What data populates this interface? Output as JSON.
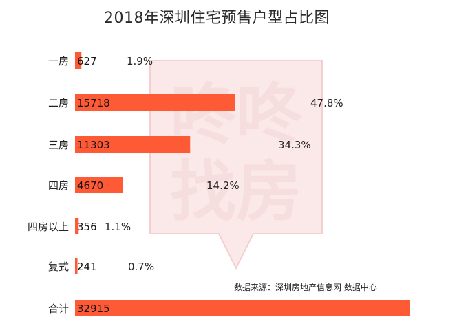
{
  "title": "2018年深圳住宅预售户型占比图",
  "source": "数据来源：深圳房地产信息网 数据中心",
  "watermark": {
    "line1": "咚咚",
    "line2": "找房"
  },
  "colors": {
    "bar": "#FF5A36",
    "text": "#222222",
    "watermark": "#F6DEDE"
  },
  "chart_data": {
    "type": "bar",
    "orientation": "horizontal",
    "title": "2018年深圳住宅预售户型占比图",
    "categories": [
      "一房",
      "二房",
      "三房",
      "四房",
      "四房以上",
      "复式",
      "合计"
    ],
    "values": [
      627,
      15718,
      11303,
      4670,
      356,
      241,
      32915
    ],
    "percent_labels": [
      "1.9%",
      "47.8%",
      "34.3%",
      "14.2%",
      "1.1%",
      "0.7%",
      ""
    ],
    "xlim": [
      0,
      32915
    ],
    "grid": false,
    "legend": "none"
  }
}
